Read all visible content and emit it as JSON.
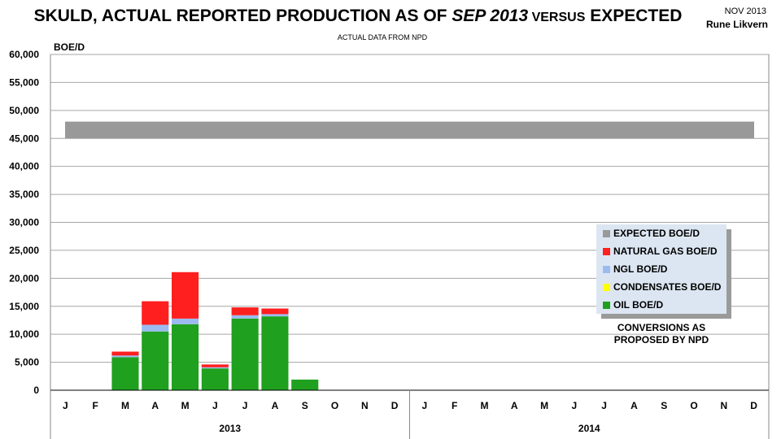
{
  "header": {
    "title_part1": "SKULD, ACTUAL REPORTED PRODUCTION AS OF ",
    "title_part2": "SEP 2013",
    "title_part3": " VERSUS",
    "title_part4": " EXPECTED",
    "subtitle": "ACTUAL DATA FROM NPD",
    "date": "NOV 2013",
    "author": "Rune Likvern"
  },
  "notes": {
    "conversion_line1": "CONVERSIONS AS",
    "conversion_line2": "PROPOSED BY NPD"
  },
  "chart_data": {
    "type": "bar",
    "stacked": true,
    "title": "SKULD, ACTUAL REPORTED PRODUCTION AS OF SEP 2013 VERSUS EXPECTED",
    "subtitle": "ACTUAL DATA FROM NPD",
    "ylabel": "BOE/D",
    "ylim": [
      0,
      60000
    ],
    "yticks": [
      "0",
      "5,000",
      "10,000",
      "15,000",
      "20,000",
      "25,000",
      "30,000",
      "35,000",
      "40,000",
      "45,000",
      "50,000",
      "55,000",
      "60,000"
    ],
    "ytick_values": [
      0,
      5000,
      10000,
      15000,
      20000,
      25000,
      30000,
      35000,
      40000,
      45000,
      50000,
      55000,
      60000
    ],
    "grid": true,
    "legend_position": "right",
    "categories": [
      "J",
      "F",
      "M",
      "A",
      "M",
      "J",
      "J",
      "A",
      "S",
      "O",
      "N",
      "D",
      "J",
      "F",
      "M",
      "A",
      "M",
      "J",
      "J",
      "A",
      "S",
      "O",
      "N",
      "D"
    ],
    "years": [
      {
        "label": "2013",
        "start": 0,
        "end": 12
      },
      {
        "label": "2014",
        "start": 12,
        "end": 24
      }
    ],
    "series": [
      {
        "name": "OIL BOE/D",
        "color": "#1fa01f",
        "values": [
          0,
          0,
          5900,
          10500,
          11800,
          3900,
          12800,
          13200,
          1900,
          0,
          0,
          0,
          0,
          0,
          0,
          0,
          0,
          0,
          0,
          0,
          0,
          0,
          0,
          0
        ]
      },
      {
        "name": "CONDENSATES BOE/D",
        "color": "#ffff00",
        "values": [
          0,
          0,
          0,
          0,
          0,
          0,
          0,
          0,
          0,
          0,
          0,
          0,
          0,
          0,
          0,
          0,
          0,
          0,
          0,
          0,
          0,
          0,
          0,
          0
        ]
      },
      {
        "name": "NGL BOE/D",
        "color": "#9bbbf0",
        "values": [
          0,
          0,
          300,
          1200,
          1000,
          200,
          600,
          400,
          0,
          0,
          0,
          0,
          0,
          0,
          0,
          0,
          0,
          0,
          0,
          0,
          0,
          0,
          0,
          0
        ]
      },
      {
        "name": "NATURAL GAS BOE/D",
        "color": "#ff1f1f",
        "values": [
          0,
          0,
          700,
          4200,
          8300,
          500,
          1400,
          1000,
          0,
          0,
          0,
          0,
          0,
          0,
          0,
          0,
          0,
          0,
          0,
          0,
          0,
          0,
          0,
          0
        ]
      }
    ],
    "expected": {
      "name": "EXPECTED BOE/D",
      "color": "#999999",
      "low": 45000,
      "high": 48000
    },
    "legend_order": [
      "EXPECTED BOE/D",
      "NATURAL GAS BOE/D",
      "NGL BOE/D",
      "CONDENSATES BOE/D",
      "OIL BOE/D"
    ],
    "legend_colors": [
      "#999999",
      "#ff1f1f",
      "#9bbbf0",
      "#ffff00",
      "#1fa01f"
    ]
  }
}
